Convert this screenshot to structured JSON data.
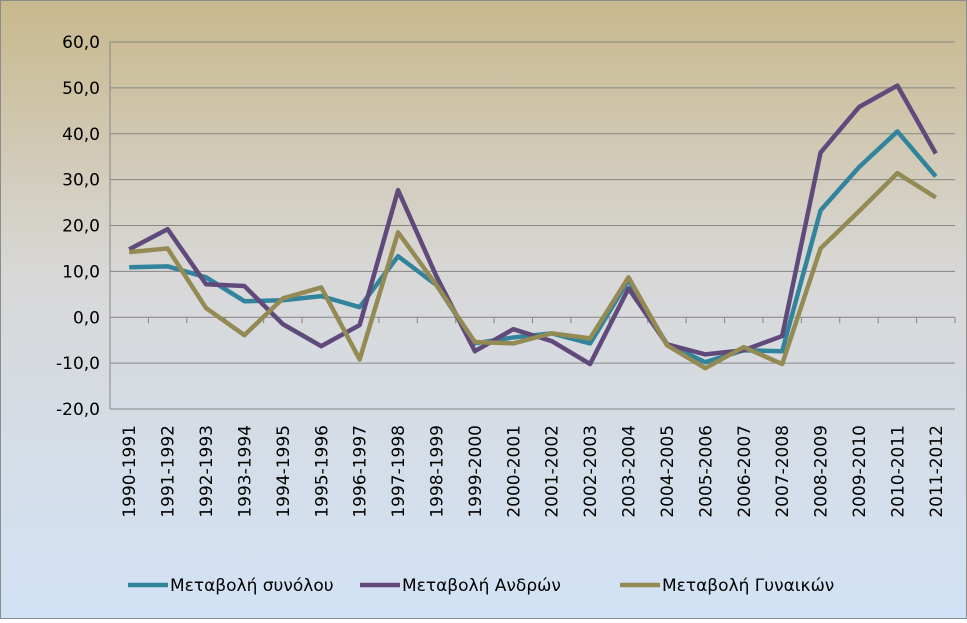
{
  "chart_data": {
    "type": "line",
    "categories": [
      "1990-1991",
      "1991-1992",
      "1992-1993",
      "1993-1994",
      "1994-1995",
      "1995-1996",
      "1996-1997",
      "1997-1998",
      "1998-1999",
      "1999-2000",
      "2000-2001",
      "2001-2002",
      "2002-2003",
      "2003-2004",
      "2004-2005",
      "2005-2006",
      "2006-2007",
      "2007-2008",
      "2008-2009",
      "2009-2010",
      "2010-2011",
      "2011-2012"
    ],
    "series": [
      {
        "name": "Μεταβολή συνόλου",
        "color": "#31849b",
        "values": [
          10.9,
          11.1,
          8.7,
          3.5,
          3.7,
          4.6,
          2.2,
          13.3,
          7.0,
          -5.7,
          -4.4,
          -3.5,
          -5.7,
          8.1,
          -5.9,
          -9.8,
          -7.2,
          -7.4,
          23.3,
          32.7,
          40.5,
          30.7
        ]
      },
      {
        "name": "Μεταβολή Ανδρών",
        "color": "#604a7b",
        "values": [
          14.8,
          19.2,
          7.2,
          6.8,
          -1.5,
          -6.3,
          -1.7,
          27.7,
          8.9,
          -7.4,
          -2.6,
          -5.2,
          -10.2,
          6.3,
          -5.9,
          -8.1,
          -7.2,
          -4.1,
          35.9,
          45.8,
          50.5,
          35.7
        ]
      },
      {
        "name": "Μεταβολή Γυναικών",
        "color": "#948a54",
        "values": [
          14.2,
          15.0,
          2.0,
          -3.9,
          4.1,
          6.5,
          -9.2,
          18.5,
          7.0,
          -5.4,
          -5.7,
          -3.5,
          -4.6,
          8.7,
          -6.1,
          -11.1,
          -6.5,
          -10.2,
          15.0,
          23.1,
          31.4,
          26.1
        ]
      }
    ],
    "ylim": [
      -20,
      60
    ],
    "yticks": [
      {
        "value": -20,
        "label": "-20,0"
      },
      {
        "value": -10,
        "label": "-10,0"
      },
      {
        "value": 0,
        "label": "0,0"
      },
      {
        "value": 10,
        "label": "10,0"
      },
      {
        "value": 20,
        "label": "20,0"
      },
      {
        "value": 30,
        "label": "30,0"
      },
      {
        "value": 40,
        "label": "40,0"
      },
      {
        "value": 50,
        "label": "50,0"
      },
      {
        "value": 60,
        "label": "60,0"
      }
    ],
    "grid": true,
    "legend": "bottom"
  }
}
